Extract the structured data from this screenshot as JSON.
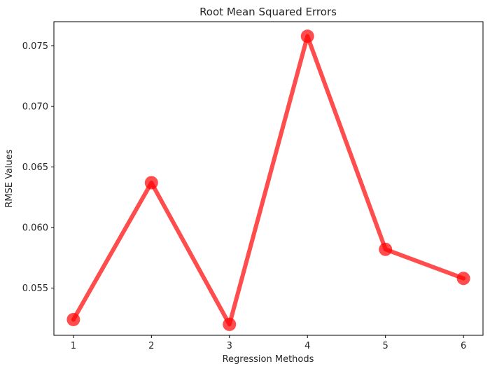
{
  "chart_data": {
    "type": "line",
    "title": "Root Mean Squared Errors",
    "xlabel": "Regression Methods",
    "ylabel": "RMSE Values",
    "x": [
      1,
      2,
      3,
      4,
      5,
      6
    ],
    "series": [
      {
        "values": [
          0.0524,
          0.0637,
          0.052,
          0.0758,
          0.0582,
          0.0558
        ],
        "color": "#ff0000",
        "marker": "circle"
      }
    ],
    "xlim": [
      0.75,
      6.25
    ],
    "ylim": [
      0.0511,
      0.077
    ],
    "xticks": [
      "1",
      "2",
      "3",
      "4",
      "5",
      "6"
    ],
    "yticks": [
      "0.055",
      "0.060",
      "0.065",
      "0.070",
      "0.075"
    ],
    "ytick_values": [
      0.055,
      0.06,
      0.065,
      0.07,
      0.075
    ],
    "grid": false,
    "legend": "none"
  }
}
